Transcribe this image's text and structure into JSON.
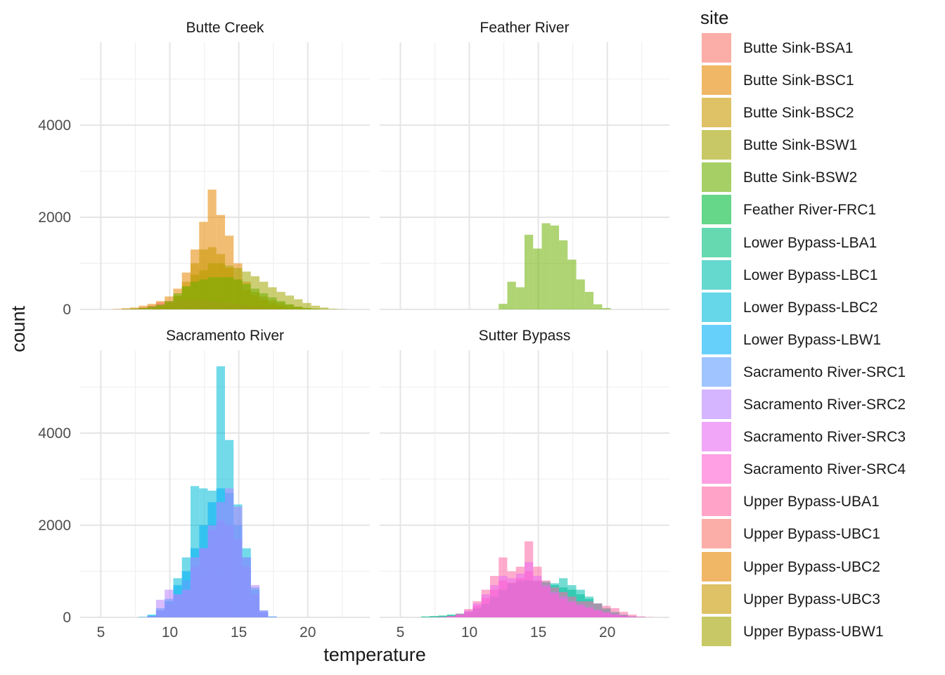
{
  "chart_data": {
    "type": "histogram",
    "xlabel": "temperature",
    "ylabel": "count",
    "x_ticks": [
      5,
      10,
      15,
      20
    ],
    "y_ticks": [
      0,
      2000,
      4000
    ],
    "xlim": [
      3.5,
      24.5
    ],
    "ylim": [
      0,
      5800
    ],
    "bin_width": 0.625,
    "bin_start": 4.0,
    "grid": true,
    "legend_title": "site",
    "legend_position": "right",
    "legend": [
      {
        "name": "Butte Sink-BSA1",
        "color": "#F8766D"
      },
      {
        "name": "Butte Sink-BSC1",
        "color": "#E58700"
      },
      {
        "name": "Butte Sink-BSC2",
        "color": "#C99800"
      },
      {
        "name": "Butte Sink-BSW1",
        "color": "#A3A500"
      },
      {
        "name": "Butte Sink-BSW2",
        "color": "#6BB100"
      },
      {
        "name": "Feather River-FRC1",
        "color": "#00BA38"
      },
      {
        "name": "Lower Bypass-LBA1",
        "color": "#00BF7D"
      },
      {
        "name": "Lower Bypass-LBC1",
        "color": "#00C0AF"
      },
      {
        "name": "Lower Bypass-LBC2",
        "color": "#00BCD8"
      },
      {
        "name": "Lower Bypass-LBW1",
        "color": "#00B0F6"
      },
      {
        "name": "Sacramento River-SRC1",
        "color": "#619CFF"
      },
      {
        "name": "Sacramento River-SRC2",
        "color": "#B983FF"
      },
      {
        "name": "Sacramento River-SRC3",
        "color": "#E76BF3"
      },
      {
        "name": "Sacramento River-SRC4",
        "color": "#FD61D1"
      },
      {
        "name": "Upper Bypass-UBA1",
        "color": "#FF67A4"
      },
      {
        "name": "Upper Bypass-UBC1",
        "color": "#F8766D"
      },
      {
        "name": "Upper Bypass-UBC2",
        "color": "#E58700"
      },
      {
        "name": "Upper Bypass-UBC3",
        "color": "#C99800"
      },
      {
        "name": "Upper Bypass-UBW1",
        "color": "#A3A500"
      }
    ],
    "panels": [
      {
        "title": "Butte Creek",
        "series": [
          {
            "name": "Butte Sink-BSC1",
            "color": "#E58700",
            "counts": [
              0,
              0,
              0,
              10,
              25,
              40,
              80,
              120,
              180,
              280,
              450,
              800,
              1300,
              1900,
              2600,
              2050,
              1600,
              1000,
              600,
              380,
              280,
              200,
              150,
              100,
              60,
              30,
              15,
              5,
              0,
              0,
              0,
              0
            ]
          },
          {
            "name": "Butte Sink-BSW1",
            "color": "#A3A500",
            "counts": [
              0,
              0,
              0,
              0,
              10,
              20,
              40,
              70,
              110,
              160,
              280,
              500,
              750,
              850,
              1000,
              1000,
              950,
              900,
              820,
              720,
              600,
              480,
              380,
              300,
              220,
              140,
              80,
              40,
              15,
              5,
              0,
              0
            ]
          },
          {
            "name": "Butte Sink-BSA1",
            "color": "#F8766D",
            "counts": [
              0,
              0,
              0,
              0,
              5,
              15,
              40,
              80,
              150,
              180,
              200,
              200,
              200,
              200,
              180,
              160,
              140,
              120,
              90,
              70,
              50,
              30,
              20,
              10,
              5,
              0,
              0,
              0,
              0,
              0,
              0,
              0
            ]
          },
          {
            "name": "Butte Sink-BSC2",
            "color": "#C99800",
            "counts": [
              0,
              0,
              0,
              0,
              5,
              10,
              20,
              40,
              80,
              150,
              300,
              600,
              1000,
              1300,
              1350,
              1200,
              900,
              650,
              420,
              300,
              200,
              130,
              80,
              40,
              20,
              10,
              0,
              0,
              0,
              0,
              0,
              0
            ]
          },
          {
            "name": "Butte Sink-BSW2",
            "color": "#6BB100",
            "counts": [
              0,
              0,
              0,
              0,
              5,
              15,
              30,
              60,
              100,
              180,
              350,
              500,
              600,
              650,
              700,
              700,
              700,
              650,
              550,
              450,
              350,
              260,
              180,
              110,
              60,
              30,
              15,
              5,
              0,
              0,
              0,
              0
            ]
          }
        ]
      },
      {
        "title": "Feather River",
        "series": [
          {
            "name": "Feather River-FRC1",
            "color": "#6BB100",
            "counts": [
              0,
              0,
              0,
              0,
              0,
              0,
              0,
              0,
              0,
              0,
              0,
              0,
              0,
              120,
              600,
              480,
              1620,
              1320,
              1870,
              1820,
              1500,
              1080,
              650,
              380,
              110,
              30,
              0,
              0,
              0,
              0,
              0,
              0
            ]
          }
        ]
      },
      {
        "title": "Sacramento River",
        "series": [
          {
            "name": "Sacramento River-SRC1",
            "color": "#00BCD8",
            "counts": [
              0,
              0,
              0,
              0,
              0,
              0,
              10,
              60,
              150,
              350,
              850,
              1300,
              2850,
              2800,
              2750,
              5450,
              3850,
              2450,
              1500,
              650,
              100,
              10,
              0,
              0,
              0,
              0,
              0,
              0,
              0,
              0,
              0,
              0
            ]
          },
          {
            "name": "Sacramento River-SRC2",
            "color": "#00B0F6",
            "counts": [
              0,
              0,
              0,
              0,
              0,
              0,
              5,
              40,
              200,
              400,
              700,
              1000,
              1500,
              2000,
              2500,
              2800,
              2700,
              2000,
              1300,
              600,
              150,
              20,
              0,
              0,
              0,
              0,
              0,
              0,
              0,
              0,
              0,
              0
            ]
          },
          {
            "name": "Sacramento River-SRC3",
            "color": "#619CFF",
            "counts": [
              0,
              0,
              0,
              0,
              0,
              0,
              5,
              30,
              150,
              300,
              500,
              800,
              1100,
              1500,
              1900,
              2100,
              2000,
              1700,
              1100,
              500,
              120,
              15,
              0,
              0,
              0,
              0,
              0,
              0,
              0,
              0,
              0,
              0
            ]
          },
          {
            "name": "Sacramento River-SRC4",
            "color": "#B983FF",
            "counts": [
              0,
              0,
              0,
              0,
              0,
              0,
              0,
              20,
              380,
              600,
              500,
              600,
              1300,
              1500,
              2000,
              2500,
              2800,
              2400,
              1300,
              700,
              150,
              10,
              0,
              0,
              0,
              0,
              0,
              0,
              0,
              0,
              0,
              0
            ]
          }
        ]
      },
      {
        "title": "Sutter Bypass",
        "series": [
          {
            "name": "Lower Bypass-LBA1",
            "color": "#00BF7D",
            "counts": [
              0,
              0,
              0,
              0,
              20,
              30,
              40,
              60,
              80,
              120,
              200,
              300,
              450,
              600,
              750,
              800,
              800,
              780,
              750,
              700,
              650,
              600,
              500,
              400,
              300,
              200,
              120,
              60,
              20,
              5,
              0,
              0
            ]
          },
          {
            "name": "Lower Bypass-LBC1",
            "color": "#00C0AF",
            "counts": [
              0,
              0,
              0,
              0,
              10,
              20,
              30,
              50,
              70,
              100,
              180,
              280,
              420,
              580,
              720,
              780,
              800,
              800,
              780,
              740,
              850,
              700,
              600,
              450,
              300,
              180,
              100,
              50,
              20,
              5,
              0,
              0
            ]
          },
          {
            "name": "Upper Bypass-UBA1",
            "color": "#FF67A4",
            "counts": [
              0,
              0,
              0,
              0,
              0,
              5,
              10,
              30,
              80,
              180,
              350,
              600,
              900,
              1300,
              1000,
              1100,
              1650,
              1100,
              800,
              650,
              550,
              450,
              350,
              350,
              300,
              250,
              200,
              120,
              60,
              20,
              5,
              0
            ]
          },
          {
            "name": "Upper Bypass-UBC2",
            "color": "#E76BF3",
            "counts": [
              0,
              0,
              0,
              0,
              0,
              0,
              5,
              20,
              60,
              150,
              300,
              500,
              700,
              900,
              850,
              950,
              1200,
              900,
              700,
              550,
              450,
              350,
              280,
              220,
              160,
              110,
              70,
              40,
              15,
              5,
              0,
              0
            ]
          },
          {
            "name": "Upper Bypass-UBC3",
            "color": "#FD61D1",
            "counts": [
              0,
              0,
              0,
              0,
              0,
              0,
              5,
              20,
              50,
              120,
              250,
              420,
              600,
              800,
              750,
              850,
              1000,
              800,
              650,
              500,
              400,
              320,
              250,
              200,
              150,
              100,
              60,
              30,
              10,
              0,
              0,
              0
            ]
          }
        ]
      }
    ]
  }
}
